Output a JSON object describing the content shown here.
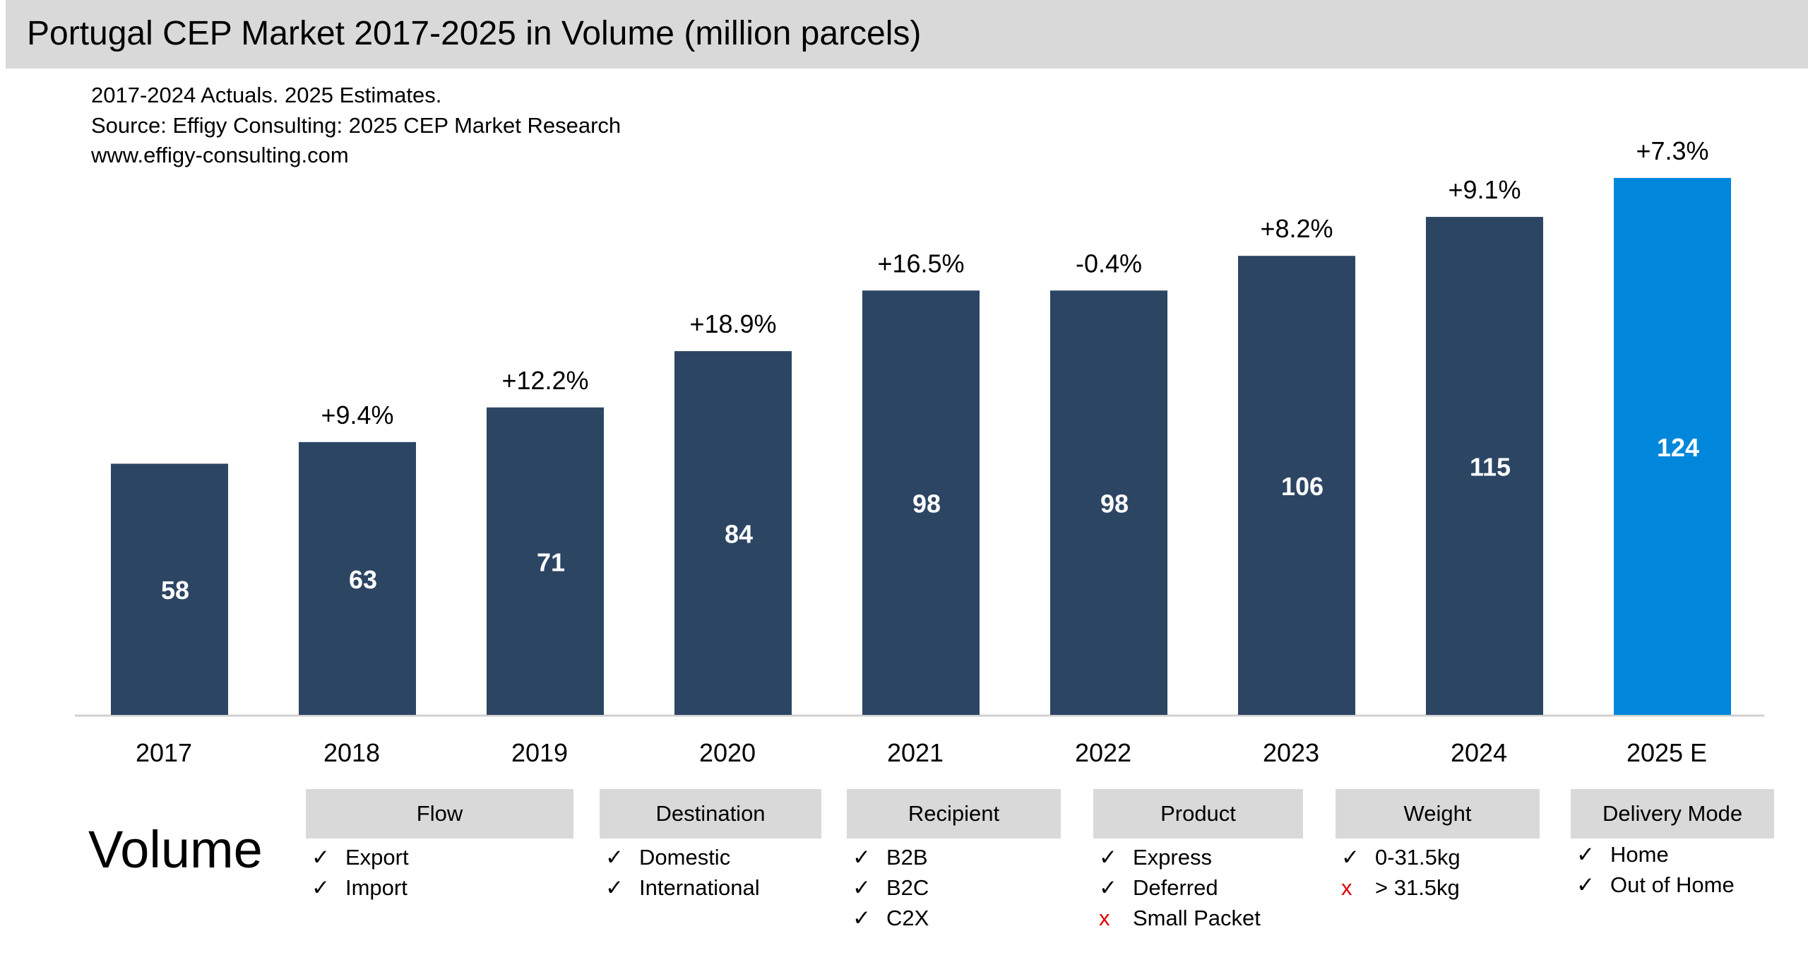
{
  "title": "Portugal CEP Market 2017-2025 in Volume (million parcels)",
  "notes": [
    "2017-2024 Actuals. 2025 Estimates.",
    "Source: Effigy Consulting: 2025 CEP Market Research",
    "www.effigy-consulting.com"
  ],
  "chart_data": {
    "type": "bar",
    "title": "Portugal CEP Market 2017-2025 in Volume (million parcels)",
    "categories": [
      "2017",
      "2018",
      "2019",
      "2020",
      "2021",
      "2022",
      "2023",
      "2024",
      "2025 E"
    ],
    "values": [
      58,
      63,
      71,
      84,
      98,
      98,
      106,
      115,
      124
    ],
    "growth_labels": [
      "",
      "+9.4%",
      "+12.2%",
      "+18.9%",
      "+16.5%",
      "-0.4%",
      "+8.2%",
      "+9.1%",
      "+7.3%"
    ],
    "colors": {
      "actual": "#2c4563",
      "estimate": "#0087dc"
    },
    "ylim": [
      0,
      130
    ],
    "grid": false,
    "xlabel": "",
    "ylabel": ""
  },
  "segment_label": "Volume",
  "segments": [
    {
      "name": "Flow",
      "items": [
        {
          "label": "Export",
          "included": true
        },
        {
          "label": "Import",
          "included": true
        }
      ]
    },
    {
      "name": "Destination",
      "items": [
        {
          "label": "Domestic",
          "included": true
        },
        {
          "label": "International",
          "included": true
        }
      ]
    },
    {
      "name": "Recipient",
      "items": [
        {
          "label": "B2B",
          "included": true
        },
        {
          "label": "B2C",
          "included": true
        },
        {
          "label": "C2X",
          "included": true
        }
      ]
    },
    {
      "name": "Product",
      "items": [
        {
          "label": "Express",
          "included": true
        },
        {
          "label": "Deferred",
          "included": true
        },
        {
          "label": "Small Packet",
          "included": false
        }
      ]
    },
    {
      "name": "Weight",
      "items": [
        {
          "label": "0-31.5kg",
          "included": true
        },
        {
          "label": "> 31.5kg",
          "included": false
        }
      ]
    },
    {
      "name": "Delivery Mode",
      "items": [
        {
          "label": "Home",
          "included": true
        },
        {
          "label": "Out of Home",
          "included": true
        }
      ]
    }
  ],
  "icons": {
    "included": "check-icon",
    "excluded": "cross-icon"
  }
}
